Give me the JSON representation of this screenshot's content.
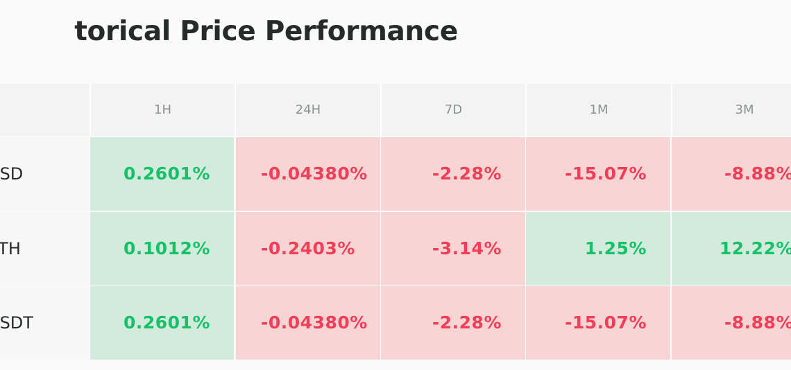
{
  "title": "torical Price Performance",
  "columns": [
    "1H",
    "24H",
    "7D",
    "1M",
    "3M"
  ],
  "rows": [
    {
      "label": "USD",
      "values": [
        "0.2601%",
        "-0.04380%",
        "-2.28%",
        "-15.07%",
        "-8.88%"
      ],
      "signs": [
        "pos",
        "neg",
        "neg",
        "neg",
        "neg"
      ]
    },
    {
      "label": "ETH",
      "values": [
        "0.1012%",
        "-0.2403%",
        "-3.14%",
        "1.25%",
        "12.22%"
      ],
      "signs": [
        "pos",
        "neg",
        "neg",
        "pos",
        "pos"
      ]
    },
    {
      "label": "USDT",
      "values": [
        "0.2601%",
        "-0.04380%",
        "-2.28%",
        "-15.07%",
        "-8.88%"
      ],
      "signs": [
        "pos",
        "neg",
        "neg",
        "neg",
        "neg"
      ]
    }
  ],
  "colors": {
    "positive_text": "#16c169",
    "positive_bg": "#d2ebdc",
    "negative_text": "#f23e56",
    "negative_bg": "#f8d4d4"
  }
}
